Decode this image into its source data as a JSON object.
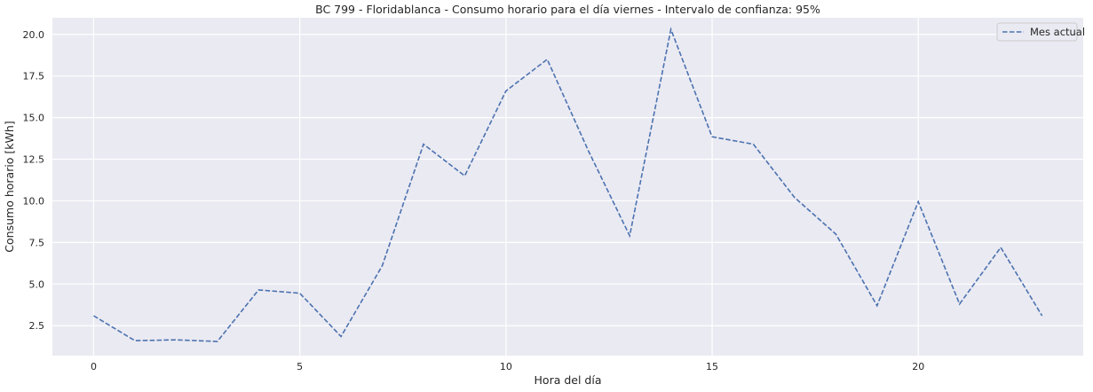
{
  "chart_data": {
    "type": "line",
    "title": "BC 799 - Floridablanca - Consumo horario para el día viernes - Intervalo de confianza: 95%",
    "xlabel": "Hora del día",
    "ylabel": "Consumo horario [kWh]",
    "xlim": [
      -1,
      24
    ],
    "ylim": [
      0.7,
      21.0
    ],
    "xticks": [
      0,
      5,
      10,
      15,
      20
    ],
    "yticks": [
      2.5,
      5.0,
      7.5,
      10.0,
      12.5,
      15.0,
      17.5,
      20.0
    ],
    "xtick_labels": [
      "0",
      "5",
      "10",
      "15",
      "20"
    ],
    "ytick_labels": [
      "2.5",
      "5.0",
      "7.5",
      "10.0",
      "12.5",
      "15.0",
      "17.5",
      "20.0"
    ],
    "grid": true,
    "legend_position": "top-right",
    "series": [
      {
        "name": "Mes actual",
        "color": "#4C72B0",
        "style": "dashed",
        "x": [
          0,
          1,
          2,
          3,
          4,
          5,
          6,
          7,
          8,
          9,
          10,
          11,
          12,
          13,
          14,
          15,
          16,
          17,
          18,
          19,
          20,
          21,
          22,
          23
        ],
        "values": [
          3.1,
          1.6,
          1.65,
          1.55,
          4.65,
          4.45,
          1.85,
          6.1,
          13.4,
          11.5,
          16.6,
          18.5,
          13.0,
          7.9,
          20.3,
          13.85,
          13.4,
          10.2,
          8.0,
          3.7,
          9.95,
          3.8,
          7.2,
          3.1
        ]
      }
    ]
  }
}
